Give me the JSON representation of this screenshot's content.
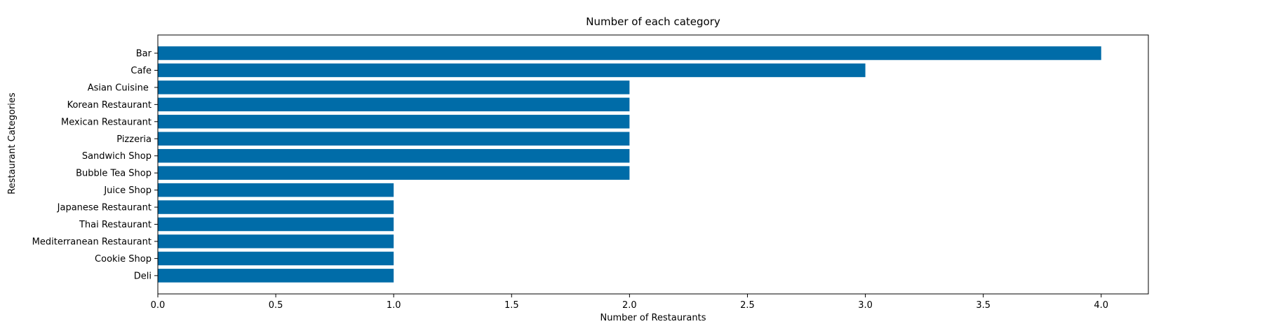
{
  "chart_data": {
    "type": "bar",
    "orientation": "horizontal",
    "title": "Number of each category",
    "xlabel": "Number of Restaurants",
    "ylabel": "Restaurant Categories",
    "xlim": [
      0,
      4.2
    ],
    "xticks": [
      0.0,
      0.5,
      1.0,
      1.5,
      2.0,
      2.5,
      3.0,
      3.5,
      4.0
    ],
    "xtick_labels": [
      "0.0",
      "0.5",
      "1.0",
      "1.5",
      "2.0",
      "2.5",
      "3.0",
      "3.5",
      "4.0"
    ],
    "grid": false,
    "bar_color": "#006ca8",
    "categories": [
      "Bar",
      "Cafe",
      "Asian Cuisine ",
      "Korean Restaurant",
      "Mexican Restaurant",
      "Pizzeria",
      "Sandwich Shop",
      "Bubble Tea Shop",
      "Juice Shop",
      "Japanese Restaurant",
      "Thai Restaurant",
      "Mediterranean Restaurant",
      "Cookie Shop",
      "Deli"
    ],
    "values": [
      4,
      3,
      2,
      2,
      2,
      2,
      2,
      2,
      1,
      1,
      1,
      1,
      1,
      1
    ]
  }
}
